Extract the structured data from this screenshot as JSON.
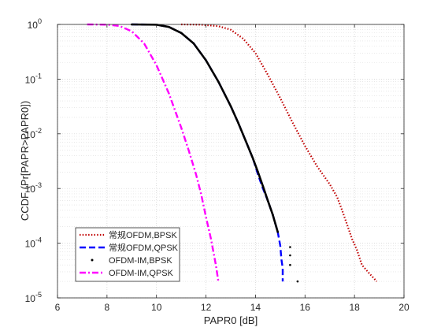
{
  "chart_data": {
    "type": "line",
    "xlabel": "PAPR0 [dB]",
    "ylabel": "CCDF (Pr[PAPR>PAPR0])",
    "xlim": [
      6,
      20
    ],
    "ylim": [
      1e-05,
      1
    ],
    "yscale": "log",
    "grid": true,
    "legend_position": "bottom-left",
    "x_ticks": [
      6,
      8,
      10,
      12,
      14,
      16,
      18,
      20
    ],
    "x_tick_labels": [
      "6",
      "8",
      "10",
      "12",
      "14",
      "16",
      "18",
      "20"
    ],
    "y_ticks": [
      1e-05,
      0.0001,
      0.001,
      0.01,
      0.1,
      1
    ],
    "y_tick_labels": [
      {
        "base": "10",
        "exp": "-5"
      },
      {
        "base": "10",
        "exp": "-4"
      },
      {
        "base": "10",
        "exp": "-3"
      },
      {
        "base": "10",
        "exp": "-2"
      },
      {
        "base": "10",
        "exp": "-1"
      },
      {
        "base": "10",
        "exp": "0"
      }
    ],
    "series": [
      {
        "name": "常规OFDM,BPSK",
        "color": "#c00000",
        "style": "dotted",
        "x": [
          11.0,
          11.8,
          12.5,
          13.0,
          13.5,
          14.0,
          14.5,
          15.0,
          15.5,
          16.0,
          16.5,
          17.0,
          17.3,
          17.5,
          17.7,
          17.9,
          18.1,
          18.3,
          18.6,
          18.9
        ],
        "y": [
          1.0,
          0.99,
          0.93,
          0.8,
          0.55,
          0.3,
          0.12,
          0.045,
          0.016,
          0.006,
          0.0025,
          0.0012,
          0.0007,
          0.0004,
          0.00022,
          0.00012,
          7.5e-05,
          4e-05,
          2.8e-05,
          2e-05
        ]
      },
      {
        "name": "常规OFDM,QPSK",
        "color": "#0000ff",
        "style": "dashed",
        "x": [
          9.0,
          10.0,
          10.5,
          11.0,
          11.5,
          12.0,
          12.5,
          13.0,
          13.3,
          13.6,
          13.9,
          14.1,
          14.3,
          14.5,
          14.7,
          14.9,
          15.0,
          15.05,
          15.1,
          15.1
        ],
        "y": [
          1.0,
          0.99,
          0.9,
          0.7,
          0.45,
          0.22,
          0.09,
          0.032,
          0.016,
          0.0075,
          0.0035,
          0.0018,
          0.001,
          0.0006,
          0.00033,
          0.00016,
          9e-05,
          5e-05,
          3.5e-05,
          2e-05
        ]
      },
      {
        "name": "OFDM-IM,BPSK",
        "color": "#000000",
        "style": "dotted",
        "x": [
          9.0,
          10.0,
          10.5,
          11.0,
          11.5,
          12.0,
          12.5,
          13.0,
          13.3,
          13.6,
          13.9,
          14.1,
          14.3,
          14.5,
          14.7,
          14.9,
          15.4,
          15.4,
          15.4,
          15.7
        ],
        "y": [
          1.0,
          0.99,
          0.9,
          0.7,
          0.45,
          0.22,
          0.09,
          0.032,
          0.016,
          0.0075,
          0.0035,
          0.002,
          0.0011,
          0.0006,
          0.00033,
          0.00016,
          8.5e-05,
          6e-05,
          4e-05,
          2e-05
        ]
      },
      {
        "name": "OFDM-IM,QPSK",
        "color": "#ff00ff",
        "style": "dashdot",
        "x": [
          7.2,
          8.0,
          8.5,
          9.0,
          9.5,
          10.0,
          10.5,
          11.0,
          11.3,
          11.6,
          11.8,
          12.0,
          12.2,
          12.4,
          12.5
        ],
        "y": [
          1.0,
          0.99,
          0.94,
          0.75,
          0.45,
          0.18,
          0.055,
          0.013,
          0.005,
          0.0018,
          0.0008,
          0.0003,
          0.00012,
          4e-05,
          2e-05
        ]
      }
    ]
  }
}
